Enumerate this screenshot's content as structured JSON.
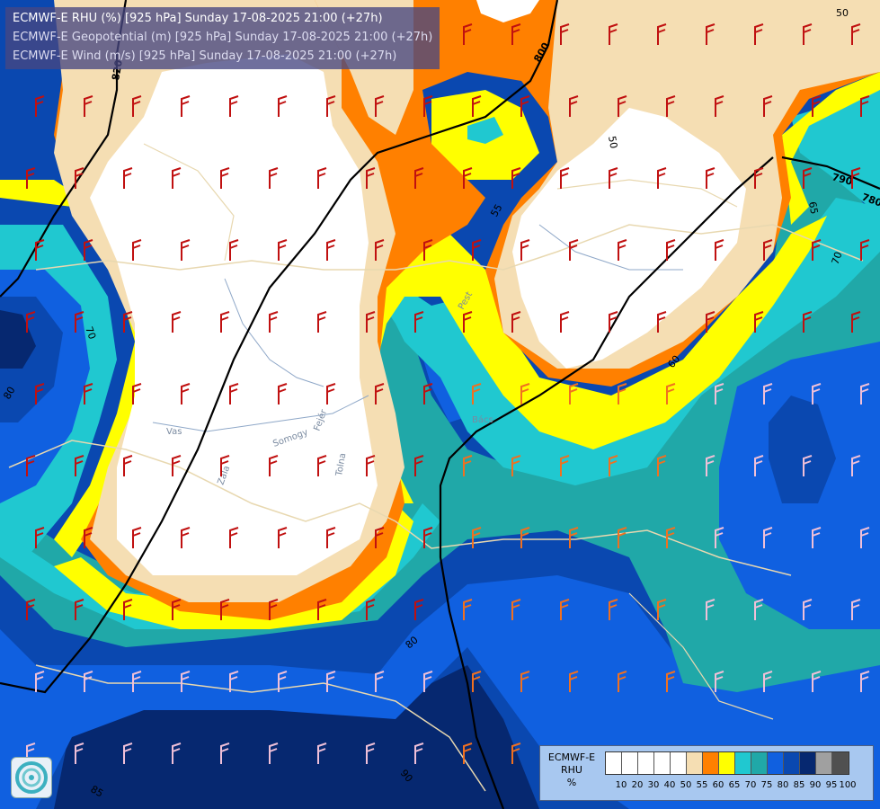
{
  "header": {
    "line1": "ECMWF-E RHU (%) [925 hPa] Sunday 17-08-2025 21:00 (+27h)",
    "line2": "ECMWF-E Geopotential (m) [925 hPa] Sunday 17-08-2025 21:00 (+27h)",
    "line3": "ECMWF-E Wind (m/s) [925 hPa] Sunday 17-08-2025 21:00 (+27h)"
  },
  "legend": {
    "title1": "ECMWF-E",
    "title2": "RHU",
    "unit": "%",
    "ticks": [
      "10",
      "20",
      "30",
      "40",
      "50",
      "55",
      "60",
      "65",
      "70",
      "75",
      "80",
      "85",
      "90",
      "95",
      "100"
    ],
    "colors": [
      "#ffffff",
      "#ffffff",
      "#ffffff",
      "#ffffff",
      "#ffffff",
      "#f5deb3",
      "#ff8000",
      "#ffff00",
      "#20c8d0",
      "#20a8a8",
      "#1060e0",
      "#0a48b0",
      "#062870",
      "#a0a0a0",
      "#505050"
    ]
  },
  "contour_labels": {
    "geo_820": "820",
    "geo_800": "800",
    "geo_790": "790",
    "geo_780": "780",
    "rh_50a": "50",
    "rh_50b": "50",
    "rh_55": "55",
    "rh_60": "60",
    "rh_65": "65",
    "rh_70a": "70",
    "rh_70b": "70",
    "rh_80a": "80",
    "rh_80b": "80",
    "rh_85": "85",
    "rh_90": "90"
  },
  "place_labels": {
    "vas": "Vas",
    "zala": "Zala",
    "somogy": "Somogy",
    "fejer": "Fejér",
    "tolna": "Tolna",
    "pest": "Pest",
    "bacs": "Bács"
  }
}
